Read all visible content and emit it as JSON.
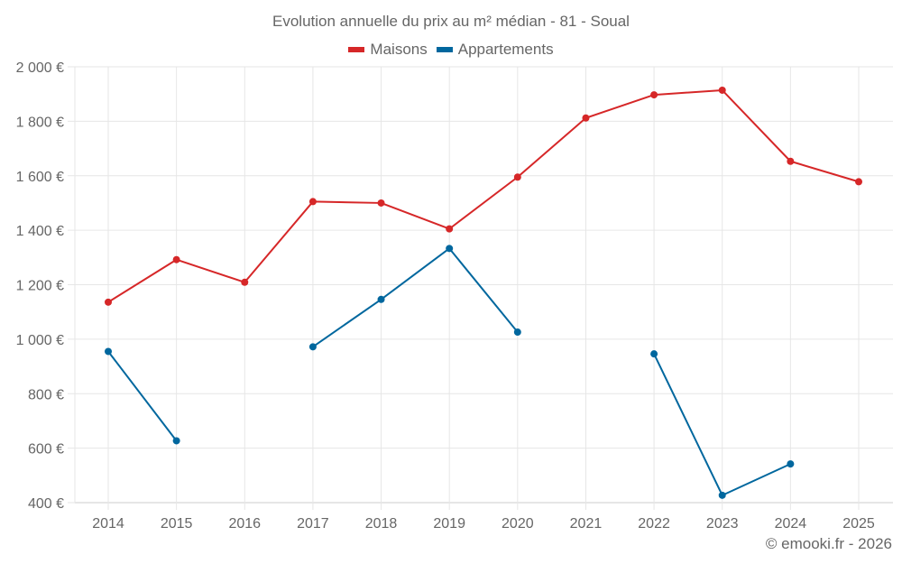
{
  "chart_data": {
    "type": "line",
    "title": "Evolution annuelle du prix au m² médian - 81 - Soual",
    "xlabel": "",
    "ylabel": "",
    "x": [
      "2014",
      "2015",
      "2016",
      "2017",
      "2018",
      "2019",
      "2020",
      "2021",
      "2022",
      "2023",
      "2024",
      "2025"
    ],
    "ylim": [
      400,
      2000
    ],
    "yticks": [
      400,
      600,
      800,
      1000,
      1200,
      1400,
      1600,
      1800,
      2000
    ],
    "ytick_labels": [
      "400 €",
      "600 €",
      "800 €",
      "1 000 €",
      "1 200 €",
      "1 400 €",
      "1 600 €",
      "1 800 €",
      "2 000 €"
    ],
    "grid": true,
    "legend_position": "top-center",
    "series": [
      {
        "name": "Maisons",
        "color": "#d62728",
        "values": [
          1136,
          1292,
          1209,
          1505,
          1500,
          1405,
          1595,
          1812,
          1897,
          1914,
          1653,
          1578
        ]
      },
      {
        "name": "Appartements",
        "color": "#00679e",
        "values": [
          955,
          627,
          null,
          972,
          1146,
          1333,
          1026,
          null,
          946,
          427,
          542,
          null
        ]
      }
    ]
  },
  "credit": "© emooki.fr - 2026"
}
